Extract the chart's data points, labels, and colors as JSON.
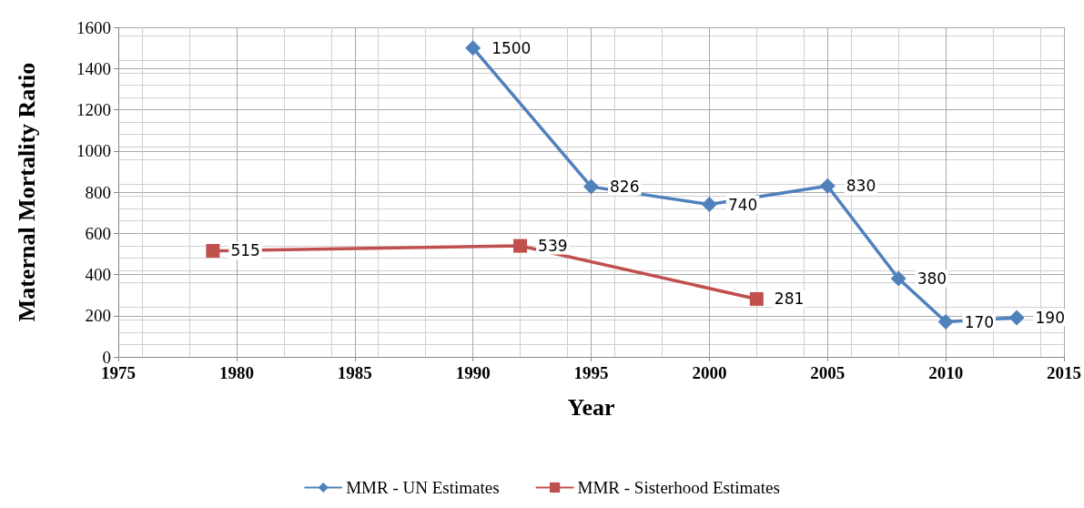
{
  "chart_data": {
    "type": "line",
    "xlabel": "Year",
    "ylabel": "Maternal Mortality Ratio",
    "xlim": [
      1975,
      2015
    ],
    "xticks": [
      1975,
      1980,
      1985,
      1990,
      1995,
      2000,
      2005,
      2010,
      2015
    ],
    "ylim": [
      0,
      1600
    ],
    "yticks": [
      0,
      200,
      400,
      600,
      800,
      1000,
      1200,
      1400,
      1600
    ],
    "grid": true,
    "legend": "bottom",
    "data_labels": true,
    "series": [
      {
        "name": "MMR - UN Estimates",
        "color": "#4f81bd",
        "marker": "diamond",
        "x": [
          1990,
          1995,
          2000,
          2005,
          2008,
          2010,
          2013
        ],
        "values": [
          1500,
          826,
          740,
          830,
          380,
          170,
          190
        ]
      },
      {
        "name": "MMR - Sisterhood Estimates",
        "color": "#c0504d",
        "marker": "square",
        "x": [
          1979,
          1992,
          2002
        ],
        "values": [
          515,
          539,
          281
        ]
      }
    ]
  }
}
